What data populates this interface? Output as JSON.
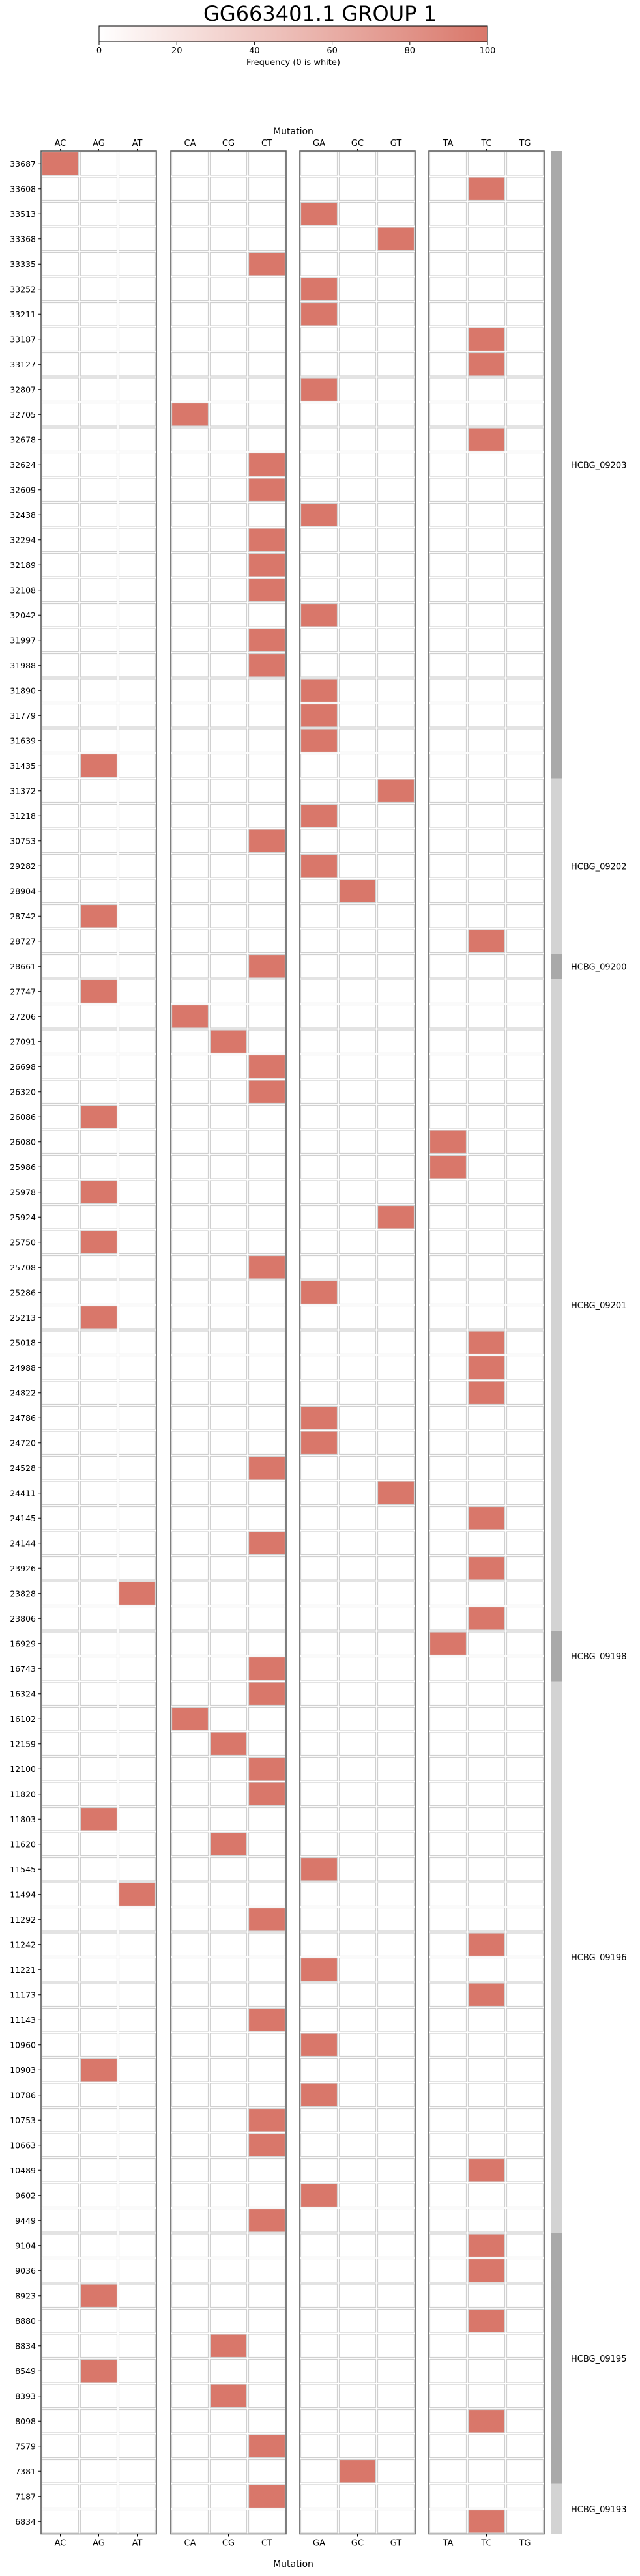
{
  "chart_data": {
    "type": "heatmap",
    "title": "GG663401.1 GROUP 1",
    "colorbar": {
      "label": "Frequency (0 is white)",
      "ticks": [
        0,
        20,
        40,
        60,
        80,
        100
      ],
      "tick_labels": [
        "0",
        "20",
        "40",
        "60",
        "80",
        "100"
      ],
      "range": [
        0,
        100
      ],
      "color_low": "#ffffff",
      "color_high": "#d9776a"
    },
    "xlabel": "Mutation",
    "ylabel": "",
    "mutation_groups": [
      [
        "AC",
        "AG",
        "AT"
      ],
      [
        "CA",
        "CG",
        "CT"
      ],
      [
        "GA",
        "GC",
        "GT"
      ],
      [
        "TA",
        "TC",
        "TG"
      ]
    ],
    "positions": [
      "33687",
      "33608",
      "33513",
      "33368",
      "33335",
      "33252",
      "33211",
      "33187",
      "33127",
      "32807",
      "32705",
      "32678",
      "32624",
      "32609",
      "32438",
      "32294",
      "32189",
      "32108",
      "32042",
      "31997",
      "31988",
      "31890",
      "31779",
      "31639",
      "31435",
      "31372",
      "31218",
      "30753",
      "29282",
      "28904",
      "28742",
      "28727",
      "28661",
      "27747",
      "27206",
      "27091",
      "26698",
      "26320",
      "26086",
      "26080",
      "25986",
      "25978",
      "25924",
      "25750",
      "25708",
      "25286",
      "25213",
      "25018",
      "24988",
      "24822",
      "24786",
      "24720",
      "24528",
      "24411",
      "24145",
      "24144",
      "23926",
      "23828",
      "23806",
      "16929",
      "16743",
      "16324",
      "16102",
      "12159",
      "12100",
      "11820",
      "11803",
      "11620",
      "11545",
      "11494",
      "11292",
      "11242",
      "11221",
      "11173",
      "11143",
      "10960",
      "10903",
      "10786",
      "10753",
      "10663",
      "10489",
      "9602",
      "9449",
      "9104",
      "9036",
      "8923",
      "8880",
      "8834",
      "8549",
      "8393",
      "8098",
      "7579",
      "7381",
      "7187",
      "6834"
    ],
    "mutations": [
      "GA",
      "TC",
      "GA",
      "GT",
      "CT",
      "GA",
      "GA",
      "TC",
      "TC",
      "GA",
      "CA",
      "TC",
      "CT",
      "CT",
      "GA",
      "CT",
      "CT",
      "CT",
      "GA",
      "CT",
      "CT",
      "GA",
      "GA",
      "GA",
      "AG",
      "GT",
      "GA",
      "CT",
      "GA",
      "GC",
      "AG",
      "TC",
      "CT",
      "AG",
      "CA",
      "CG",
      "CT",
      "CT",
      "AG",
      "TA",
      "TA",
      "AG",
      "GT",
      "AG",
      "CT",
      "GA",
      "AG",
      "TC",
      "TC",
      "TC",
      "GA",
      "GA",
      "CT",
      "GT",
      "TC",
      "CT",
      "TC",
      "AT",
      "TC",
      "TA",
      "CT",
      "CT",
      "CA",
      "CG",
      "CT",
      "CT",
      "AG",
      "CG",
      "GA",
      "AT",
      "CT",
      "TC",
      "GA",
      "TC",
      "CT",
      "GA",
      "AG",
      "GA",
      "CT",
      "CT",
      "TC",
      "GA",
      "CT",
      "TC",
      "TC",
      "AG",
      "TC",
      "CG",
      "AG",
      "CG",
      "TC",
      "CT",
      "GC",
      "CT",
      "TC"
    ],
    "mutation_overrides": {
      "0": "AC"
    },
    "frequency": 100,
    "genes": [
      {
        "name": "HCBG_09203",
        "start": 0,
        "end": 25,
        "shade": "#a9a9a9"
      },
      {
        "name": "HCBG_09202",
        "start": 25,
        "end": 32,
        "shade": "#d3d3d3"
      },
      {
        "name": "HCBG_09200",
        "start": 32,
        "end": 33,
        "shade": "#a9a9a9"
      },
      {
        "name": "HCBG_09201",
        "start": 33,
        "end": 59,
        "shade": "#d3d3d3"
      },
      {
        "name": "HCBG_09198",
        "start": 59,
        "end": 61,
        "shade": "#a9a9a9"
      },
      {
        "name": "HCBG_09196",
        "start": 61,
        "end": 83,
        "shade": "#d3d3d3"
      },
      {
        "name": "HCBG_09195",
        "start": 83,
        "end": 93,
        "shade": "#a9a9a9"
      },
      {
        "name": "HCBG_09193",
        "start": 93,
        "end": 95,
        "shade": "#d3d3d3"
      }
    ]
  }
}
